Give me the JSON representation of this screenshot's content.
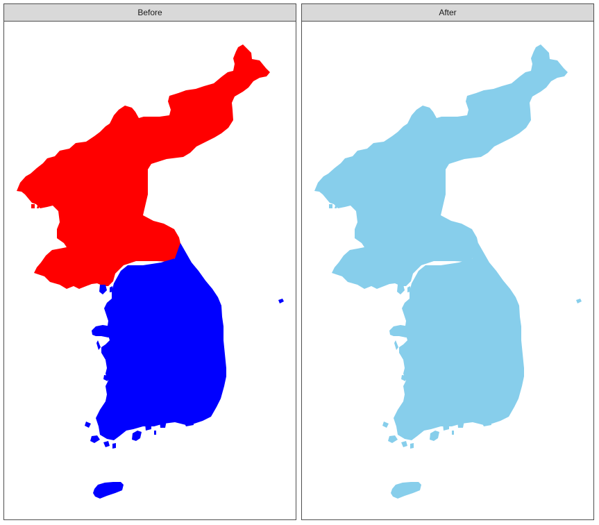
{
  "panels": [
    {
      "title": "Before",
      "colors": {
        "north": "#ff0000",
        "south": "#0000ff"
      }
    },
    {
      "title": "After",
      "colors": {
        "north": "#87ceeb",
        "south": "#87ceeb"
      }
    }
  ]
}
